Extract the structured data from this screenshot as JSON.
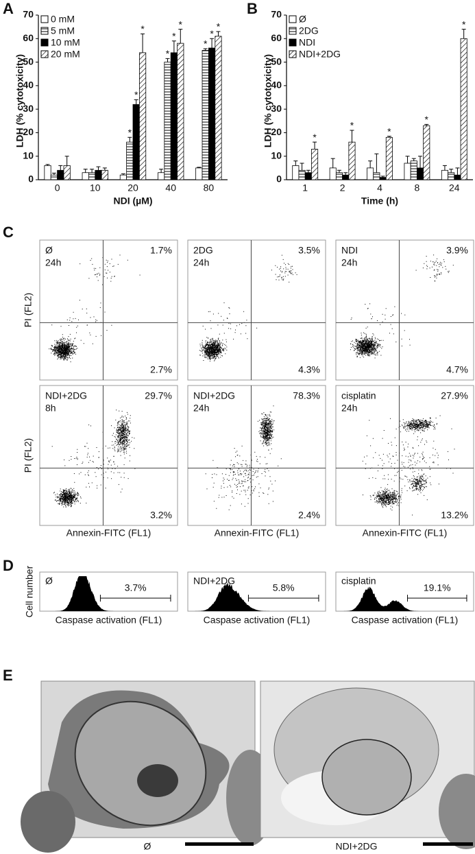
{
  "panels": [
    "A",
    "B",
    "C",
    "D",
    "E"
  ],
  "chart_data": [
    {
      "type": "bar",
      "y_label": "LDH (% cytotoxicity)",
      "x_label": "NDI (µM)",
      "categories": [
        "0",
        "10",
        "20",
        "40",
        "80"
      ],
      "ylim": [
        0,
        70
      ],
      "yticks": [
        0,
        10,
        20,
        30,
        40,
        50,
        60,
        70
      ],
      "legend": "top-left",
      "series": [
        {
          "name": "0 mM",
          "color": "#ffffff",
          "pattern": "solid",
          "values": [
            6,
            3,
            2,
            3,
            5
          ],
          "errors": [
            0.5,
            1.5,
            0.5,
            1.5,
            0.3
          ],
          "stars": [
            null,
            null,
            null,
            null,
            null
          ]
        },
        {
          "name": "5 mM",
          "color": "#ffffff",
          "pattern": "horizontal",
          "values": [
            2,
            3,
            16,
            50,
            55
          ],
          "errors": [
            0.8,
            1.5,
            2,
            1.5,
            0.7
          ],
          "stars": [
            null,
            null,
            "*",
            "*",
            "*"
          ]
        },
        {
          "name": "10 mM",
          "color": "#000000",
          "pattern": "solid",
          "values": [
            4,
            4,
            32,
            54,
            56
          ],
          "errors": [
            2,
            1.5,
            2,
            5,
            4
          ],
          "stars": [
            null,
            null,
            "*",
            "*",
            "*"
          ]
        },
        {
          "name": "20 mM",
          "color": "#ffffff",
          "pattern": "diagonal",
          "values": [
            6,
            4,
            54,
            58,
            61
          ],
          "errors": [
            4,
            1,
            8,
            6,
            2
          ],
          "stars": [
            null,
            null,
            "*",
            "*",
            "*"
          ]
        }
      ]
    },
    {
      "type": "bar",
      "y_label": "LDH (% cytotoxicity)",
      "x_label": "Time (h)",
      "categories": [
        "1",
        "2",
        "4",
        "8",
        "24"
      ],
      "ylim": [
        0,
        70
      ],
      "yticks": [
        0,
        10,
        20,
        30,
        40,
        50,
        60,
        70
      ],
      "legend": "top-left",
      "series": [
        {
          "name": "Ø",
          "color": "#ffffff",
          "pattern": "solid",
          "values": [
            6,
            5,
            5,
            7,
            4
          ],
          "errors": [
            2,
            4,
            3,
            3,
            2
          ],
          "stars": [
            null,
            null,
            null,
            null,
            null
          ]
        },
        {
          "name": "2DG",
          "color": "#ffffff",
          "pattern": "horizontal",
          "values": [
            4,
            3,
            3,
            8,
            3
          ],
          "errors": [
            3,
            1,
            8,
            1,
            1.5
          ],
          "stars": [
            null,
            null,
            null,
            null,
            null
          ]
        },
        {
          "name": "NDI",
          "color": "#000000",
          "pattern": "solid",
          "values": [
            3,
            2,
            1,
            5,
            2
          ],
          "errors": [
            1,
            1,
            0.5,
            5,
            3
          ],
          "stars": [
            null,
            null,
            null,
            null,
            null
          ]
        },
        {
          "name": "NDI+2DG",
          "color": "#ffffff",
          "pattern": "diagonal",
          "values": [
            13,
            16,
            18,
            23,
            60
          ],
          "errors": [
            3,
            5,
            0.5,
            0.5,
            4
          ],
          "stars": [
            "*",
            "*",
            "*",
            "*",
            "*"
          ]
        }
      ]
    }
  ],
  "flow_cytometry": {
    "y_label": "PI (FL2)",
    "x_label": "Annexin-FITC (FL1)",
    "plots": [
      {
        "label": "Ø",
        "time": "24h",
        "upper_right": "1.7%",
        "lower_right": "2.7%"
      },
      {
        "label": "2DG",
        "time": "24h",
        "upper_right": "3.5%",
        "lower_right": "4.3%"
      },
      {
        "label": "NDI",
        "time": "24h",
        "upper_right": "3.9%",
        "lower_right": "4.7%"
      },
      {
        "label": "NDI+2DG",
        "time": "8h",
        "upper_right": "29.7%",
        "lower_right": "3.2%"
      },
      {
        "label": "NDI+2DG",
        "time": "24h",
        "upper_right": "78.3%",
        "lower_right": "2.4%"
      },
      {
        "label": "cisplatin",
        "time": "24h",
        "upper_right": "27.9%",
        "lower_right": "13.2%"
      }
    ]
  },
  "caspase": {
    "y_label": "Cell number",
    "x_label": "Caspase activation (FL1)",
    "plots": [
      {
        "label": "Ø",
        "gate": "3.7%"
      },
      {
        "label": "NDI+2DG",
        "gate": "5.8%"
      },
      {
        "label": "cisplatin",
        "gate": "19.1%"
      }
    ]
  },
  "micrographs": [
    {
      "label": "Ø"
    },
    {
      "label": "NDI+2DG"
    }
  ]
}
